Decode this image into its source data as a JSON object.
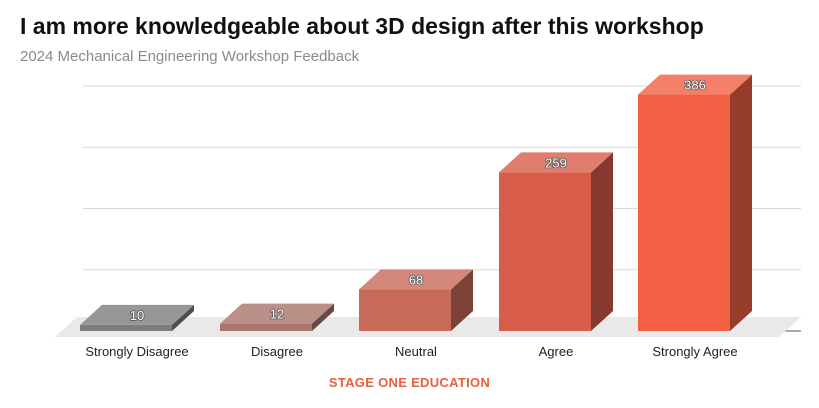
{
  "chart_data": {
    "type": "bar",
    "title": "I am more knowledgeable about 3D design after this workshop",
    "subtitle": "2024 Mechanical Engineering Workshop Feedback",
    "categories": [
      "Strongly Disagree",
      "Disagree",
      "Neutral",
      "Agree",
      "Strongly Agree"
    ],
    "values": [
      10,
      12,
      68,
      259,
      386
    ],
    "ylim": [
      0,
      400
    ],
    "grid": true,
    "colors": [
      "#7d7d7d",
      "#a8766c",
      "#c86a5a",
      "#d95c4b",
      "#f26043"
    ]
  },
  "footer": {
    "label": "STAGE ONE EDUCATION",
    "color": "#e8603f"
  }
}
